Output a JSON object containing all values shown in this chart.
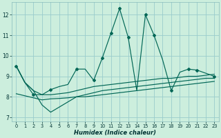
{
  "bg_color": "#cceedd",
  "grid_color": "#99cccc",
  "line_color": "#006655",
  "xlabel": "Humidex (Indice chaleur)",
  "xlim": [
    -0.5,
    23.5
  ],
  "ylim": [
    6.8,
    12.6
  ],
  "yticks": [
    7,
    8,
    9,
    10,
    11,
    12
  ],
  "xticks": [
    0,
    1,
    2,
    3,
    4,
    5,
    6,
    7,
    8,
    9,
    10,
    11,
    12,
    13,
    14,
    15,
    16,
    17,
    18,
    19,
    20,
    21,
    22,
    23
  ],
  "line_main_x": [
    0,
    1,
    2,
    3,
    4,
    5,
    6,
    7,
    8,
    9,
    10,
    11,
    12,
    13,
    14,
    15,
    16,
    17,
    18,
    19,
    20,
    21,
    22,
    23
  ],
  "line_main_y": [
    9.5,
    8.7,
    8.1,
    8.1,
    8.35,
    8.5,
    8.6,
    9.35,
    9.35,
    8.8,
    9.9,
    11.1,
    12.3,
    10.9,
    8.3,
    12.0,
    11.0,
    9.8,
    8.3,
    9.2,
    9.35,
    9.3,
    9.15,
    9.0
  ],
  "markers_x": [
    0,
    2,
    4,
    7,
    9,
    10,
    11,
    12,
    13,
    15,
    16,
    18,
    20,
    21,
    23
  ],
  "markers_y": [
    9.5,
    8.1,
    8.35,
    9.35,
    8.8,
    9.9,
    11.1,
    12.3,
    10.9,
    12.0,
    11.0,
    8.3,
    9.35,
    9.3,
    9.0
  ],
  "line_smooth_x": [
    0,
    1,
    2,
    3,
    4,
    5,
    6,
    7,
    8,
    9,
    10,
    11,
    12,
    13,
    14,
    15,
    16,
    17,
    18,
    19,
    20,
    21,
    22,
    23
  ],
  "line_smooth_y": [
    9.5,
    8.7,
    8.3,
    8.1,
    8.1,
    8.15,
    8.2,
    8.3,
    8.4,
    8.5,
    8.55,
    8.6,
    8.65,
    8.7,
    8.75,
    8.8,
    8.85,
    8.9,
    8.9,
    8.95,
    9.0,
    9.0,
    9.05,
    9.1
  ],
  "line_flat_x": [
    0,
    1,
    2,
    3,
    4,
    5,
    6,
    7,
    8,
    9,
    10,
    11,
    12,
    13,
    14,
    15,
    16,
    17,
    18,
    19,
    20,
    21,
    22,
    23
  ],
  "line_flat_y": [
    8.15,
    8.05,
    7.95,
    7.85,
    7.9,
    7.92,
    7.95,
    8.0,
    8.0,
    8.05,
    8.1,
    8.15,
    8.2,
    8.25,
    8.3,
    8.35,
    8.4,
    8.45,
    8.5,
    8.55,
    8.6,
    8.65,
    8.7,
    8.75
  ],
  "line_vdip_x": [
    0,
    1,
    2,
    3,
    4,
    5,
    6,
    7,
    8,
    9,
    10,
    11,
    12,
    13,
    14,
    15,
    16,
    17,
    18,
    19,
    20,
    21,
    22,
    23
  ],
  "line_vdip_y": [
    9.5,
    8.7,
    8.3,
    7.6,
    7.25,
    7.5,
    7.75,
    8.0,
    8.1,
    8.2,
    8.3,
    8.35,
    8.4,
    8.45,
    8.5,
    8.55,
    8.6,
    8.65,
    8.7,
    8.75,
    8.8,
    8.85,
    8.9,
    8.9
  ]
}
